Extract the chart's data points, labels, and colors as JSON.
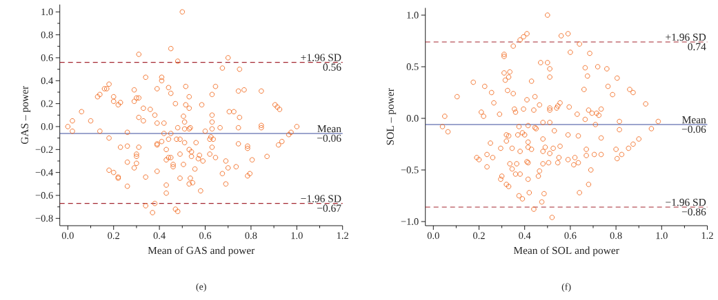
{
  "chart_data": [
    {
      "type": "scatter",
      "xlabel": "Mean of GAS and power",
      "ylabel": "GAS – power",
      "color": "#f26b22",
      "marker": "circle",
      "x": [
        0.0,
        0.02,
        0.02,
        0.06,
        0.1,
        0.13,
        0.14,
        0.14,
        0.16,
        0.17,
        0.18,
        0.18,
        0.18,
        0.2,
        0.2,
        0.2,
        0.22,
        0.23,
        0.22,
        0.22,
        0.23,
        0.26,
        0.26,
        0.26,
        0.26,
        0.29,
        0.29,
        0.3,
        0.31,
        0.31,
        0.31,
        0.31,
        0.3,
        0.3,
        0.3,
        0.29,
        0.33,
        0.33,
        0.34,
        0.36,
        0.34,
        0.34,
        0.37,
        0.38,
        0.38,
        0.39,
        0.39,
        0.39,
        0.39,
        0.39,
        0.41,
        0.41,
        0.42,
        0.42,
        0.41,
        0.43,
        0.43,
        0.43,
        0.43,
        0.44,
        0.45,
        0.45,
        0.45,
        0.44,
        0.44,
        0.45,
        0.46,
        0.46,
        0.47,
        0.48,
        0.47,
        0.48,
        0.475,
        0.48,
        0.49,
        0.49,
        0.49,
        0.5,
        0.505,
        0.51,
        0.51,
        0.505,
        0.51,
        0.515,
        0.515,
        0.53,
        0.53,
        0.53,
        0.535,
        0.53,
        0.54,
        0.54,
        0.535,
        0.53,
        0.545,
        0.555,
        0.56,
        0.57,
        0.575,
        0.585,
        0.59,
        0.58,
        0.6,
        0.7,
        0.675,
        0.75,
        0.645,
        0.63,
        0.745,
        0.77,
        0.845,
        0.905,
        0.915,
        0.925,
        0.705,
        0.725,
        0.63,
        0.75,
        0.63,
        0.63,
        0.665,
        0.745,
        0.845,
        0.845,
        1.0,
        0.975,
        0.965,
        0.935,
        0.92,
        0.625,
        0.635,
        0.62,
        0.63,
        0.745,
        0.785,
        0.785,
        0.62,
        0.645,
        0.805,
        0.87,
        0.69,
        0.7,
        0.735,
        0.675,
        0.795,
        0.785,
        0.69
      ],
      "values": [
        0.0,
        -0.04,
        0.05,
        0.13,
        0.05,
        0.26,
        0.28,
        -0.04,
        0.33,
        0.33,
        0.37,
        -0.1,
        -0.38,
        0.26,
        0.22,
        -0.4,
        0.19,
        0.21,
        -0.44,
        -0.45,
        -0.18,
        -0.05,
        -0.17,
        -0.31,
        -0.52,
        0.32,
        0.22,
        0.25,
        0.25,
        0.63,
        0.08,
        -0.18,
        -0.24,
        -0.26,
        -0.32,
        -0.36,
        0.16,
        0.05,
        0.43,
        0.15,
        -0.44,
        -0.69,
        -0.75,
        -0.67,
        0.1,
        0.03,
        0.33,
        -0.16,
        -0.15,
        -0.39,
        0.4,
        0.43,
        0.03,
        -0.06,
        -0.13,
        -0.2,
        -0.29,
        -0.51,
        -0.58,
        0.34,
        0.68,
        0.29,
        -0.06,
        -0.11,
        -0.27,
        -0.27,
        -0.33,
        -0.35,
        0.2,
        0.57,
        -0.72,
        -0.74,
        -0.11,
        -0.01,
        -0.24,
        -0.45,
        -0.11,
        1.0,
        0.09,
        0.04,
        -0.02,
        -0.33,
        -0.14,
        0.35,
        0.19,
        0.26,
        0.16,
        -0.02,
        -0.01,
        -0.2,
        -0.22,
        -0.26,
        -0.45,
        -0.5,
        -0.49,
        -0.37,
        -0.14,
        -0.28,
        -0.25,
        0.19,
        -0.3,
        -0.56,
        -0.04,
        0.6,
        0.51,
        0.5,
        0.35,
        0.28,
        0.31,
        0.32,
        0.31,
        0.19,
        0.17,
        0.15,
        0.13,
        0.13,
        0.1,
        0.08,
        0.04,
        -0.02,
        -0.01,
        -0.01,
        0.01,
        -0.01,
        0.0,
        -0.05,
        -0.07,
        -0.13,
        -0.16,
        -0.09,
        -0.11,
        -0.11,
        -0.18,
        -0.15,
        -0.17,
        -0.19,
        -0.24,
        -0.27,
        -0.29,
        -0.26,
        -0.3,
        -0.36,
        -0.35,
        -0.41,
        -0.41,
        -0.43,
        -0.5
      ],
      "xlim": [
        -0.035,
        1.2
      ],
      "ylim": [
        -0.864,
        1.064
      ],
      "xticks": [
        {
          "value": 0,
          "label": "0.0"
        },
        {
          "value": 0.1,
          "label": null
        },
        0.2,
        {
          "value": 0.3,
          "label": null
        },
        0.4,
        {
          "value": 0.5,
          "label": null
        },
        0.6,
        {
          "value": 0.7,
          "label": null
        },
        0.8,
        {
          "value": 0.9,
          "label": null
        },
        {
          "value": 1,
          "label": "1.0"
        },
        {
          "value": 1.1,
          "label": null
        },
        1.2
      ],
      "yticks": [
        {
          "value": -0.8,
          "label": "−0.8"
        },
        {
          "value": -0.7,
          "label": null
        },
        {
          "value": -0.6,
          "label": "−0.6"
        },
        {
          "value": -0.5,
          "label": null
        },
        {
          "value": -0.4,
          "label": "−0.4"
        },
        {
          "value": -0.3,
          "label": null
        },
        {
          "value": -0.2,
          "label": "−0.2"
        },
        {
          "value": -0.1,
          "label": null
        },
        {
          "value": 0,
          "label": "0.0"
        },
        {
          "value": 0.1,
          "label": null
        },
        0.2,
        {
          "value": 0.3,
          "label": null
        },
        0.4,
        {
          "value": 0.5,
          "label": null
        },
        0.6,
        {
          "value": 0.7,
          "label": null
        },
        0.8,
        {
          "value": 0.9,
          "label": null
        },
        {
          "value": 1,
          "label": "1.0"
        }
      ],
      "ref_lines": [
        {
          "axis": "y",
          "value": 0.56,
          "label": "+1.96 SD",
          "color": "#a3252f",
          "line_style": "dashed"
        },
        {
          "axis": "y",
          "value": -0.06,
          "label": "Mean",
          "color": "#3b4a9c",
          "line_style": "solid"
        },
        {
          "axis": "y",
          "value": -0.67,
          "label": "−1.96 SD",
          "color": "#a3252f",
          "line_style": "dashed"
        }
      ],
      "annotations": [
        {
          "text": "0.56",
          "y": 0.56
        },
        {
          "text": "−0.06",
          "y": -0.06
        },
        {
          "text": "−0.67",
          "y": -0.67
        },
        "(e)"
      ]
    },
    {
      "type": "scatter",
      "xlabel": "Mean of SOL and power",
      "ylabel": "SOL – power",
      "color": "#f26b22",
      "marker": "circle",
      "x": [
        0.04,
        0.05,
        0.064,
        0.104,
        0.175,
        0.19,
        0.2,
        0.21,
        0.22,
        0.225,
        0.235,
        0.235,
        0.25,
        0.255,
        0.26,
        0.265,
        0.29,
        0.295,
        0.295,
        0.3,
        0.31,
        0.31,
        0.31,
        0.315,
        0.32,
        0.33,
        0.32,
        0.33,
        0.32,
        0.325,
        0.33,
        0.335,
        0.335,
        0.345,
        0.345,
        0.35,
        0.35,
        0.355,
        0.36,
        0.36,
        0.365,
        0.37,
        0.375,
        0.375,
        0.38,
        0.38,
        0.38,
        0.39,
        0.39,
        0.395,
        0.395,
        0.4,
        0.41,
        0.41,
        0.415,
        0.415,
        0.415,
        0.41,
        0.415,
        0.415,
        0.42,
        0.43,
        0.43,
        0.44,
        0.445,
        0.44,
        0.445,
        0.45,
        0.46,
        0.465,
        0.465,
        0.47,
        0.475,
        0.48,
        0.48,
        0.48,
        0.48,
        0.485,
        0.49,
        0.5,
        0.5,
        0.51,
        0.51,
        0.51,
        0.51,
        0.51,
        0.51,
        0.505,
        0.52,
        0.525,
        0.53,
        0.54,
        0.545,
        0.555,
        0.555,
        0.55,
        0.545,
        0.56,
        0.59,
        0.64,
        0.6,
        0.685,
        0.665,
        0.72,
        0.76,
        0.675,
        0.805,
        0.66,
        0.765,
        0.785,
        0.86,
        0.875,
        0.93,
        0.595,
        0.63,
        0.665,
        0.68,
        0.695,
        0.715,
        0.725,
        0.735,
        0.71,
        0.815,
        0.815,
        0.985,
        0.955,
        0.9,
        0.875,
        0.855,
        0.59,
        0.635,
        0.735,
        0.67,
        0.67,
        0.705,
        0.735,
        0.8,
        0.805,
        0.825,
        0.59,
        0.62,
        0.615,
        0.635,
        0.69,
        0.68,
        0.64
      ],
      "values": [
        -0.08,
        0.02,
        -0.13,
        0.21,
        0.35,
        -0.38,
        -0.4,
        0.06,
        0.02,
        0.31,
        -0.35,
        -0.47,
        -0.24,
        0.25,
        -0.38,
        0.15,
        0.04,
        -0.29,
        -0.59,
        -0.56,
        0.62,
        0.6,
        0.44,
        0.37,
        -0.64,
        -0.66,
        -0.16,
        -0.17,
        -0.22,
        0.27,
        0.4,
        0.45,
        -0.44,
        -0.49,
        -0.29,
        0.7,
        0.24,
        0.09,
        0.06,
        -0.54,
        -0.44,
        -0.16,
        -0.08,
        -0.75,
        -0.32,
        -0.54,
        0.76,
        -0.14,
        -0.78,
        0.79,
        0.09,
        -0.16,
        0.82,
        0.18,
        -0.07,
        -0.23,
        -0.28,
        -0.42,
        -0.43,
        -0.59,
        -0.72,
        0.36,
        -0.3,
        0.08,
        0.21,
        -0.88,
        -0.09,
        -0.1,
        -0.56,
        -0.51,
        0.13,
        0.54,
        -0.81,
        -0.04,
        -0.2,
        -0.32,
        -0.44,
        -0.73,
        -0.28,
        0.54,
        1.0,
        0.48,
        0.4,
        0.1,
        0.08,
        -0.04,
        -0.34,
        -0.43,
        -0.96,
        -0.29,
        -0.12,
        0.1,
        0.12,
        0.15,
        -0.27,
        -0.38,
        -0.43,
        0.8,
        0.82,
        0.72,
        0.64,
        0.63,
        0.49,
        0.5,
        0.48,
        0.41,
        0.39,
        0.28,
        0.31,
        0.23,
        0.28,
        0.25,
        0.14,
        0.11,
        0.04,
        -0.01,
        0.08,
        0.05,
        0.05,
        0.03,
        0.09,
        -0.06,
        -0.03,
        -0.11,
        -0.03,
        -0.1,
        -0.2,
        -0.25,
        -0.29,
        -0.16,
        -0.17,
        -0.19,
        -0.3,
        -0.36,
        -0.35,
        -0.35,
        -0.3,
        -0.39,
        -0.35,
        -0.4,
        -0.38,
        -0.45,
        -0.43,
        -0.5,
        -0.64,
        -0.72
      ],
      "xlim": [
        -0.035,
        1.2
      ],
      "ylim": [
        -1.04,
        1.07
      ],
      "xticks": [
        {
          "value": 0,
          "label": "0.0"
        },
        {
          "value": 0.1,
          "label": null
        },
        0.2,
        {
          "value": 0.3,
          "label": null
        },
        0.4,
        {
          "value": 0.5,
          "label": null
        },
        0.6,
        {
          "value": 0.7,
          "label": null
        },
        0.8,
        {
          "value": 0.9,
          "label": null
        },
        {
          "value": 1,
          "label": "1.0"
        },
        {
          "value": 1.1,
          "label": null
        },
        1.2
      ],
      "yticks": [
        {
          "value": -1,
          "label": "−1.0"
        },
        {
          "value": -0.5,
          "label": "−0.5"
        },
        {
          "value": 0,
          "label": "0.0"
        },
        0.5,
        {
          "value": 1,
          "label": "1.0"
        }
      ],
      "ref_lines": [
        {
          "axis": "y",
          "value": 0.74,
          "label": "+1.96 SD",
          "color": "#a3252f",
          "line_style": "dashed"
        },
        {
          "axis": "y",
          "value": -0.06,
          "label": "Mean",
          "color": "#3b4a9c",
          "line_style": "solid"
        },
        {
          "axis": "y",
          "value": -0.86,
          "label": "−1.96 SD",
          "color": "#a3252f",
          "line_style": "dashed"
        }
      ],
      "annotations": [
        {
          "text": "0.74",
          "y": 0.74
        },
        {
          "text": "−0.06",
          "y": -0.06
        },
        {
          "text": "−0.86",
          "y": -0.86
        },
        "(f)"
      ]
    }
  ]
}
